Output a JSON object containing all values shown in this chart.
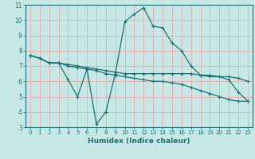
{
  "xlabel": "Humidex (Indice chaleur)",
  "xlim": [
    -0.5,
    23.5
  ],
  "ylim": [
    3,
    11
  ],
  "yticks": [
    3,
    4,
    5,
    6,
    7,
    8,
    9,
    10,
    11
  ],
  "xticks": [
    0,
    1,
    2,
    3,
    4,
    5,
    6,
    7,
    8,
    9,
    10,
    11,
    12,
    13,
    14,
    15,
    16,
    17,
    18,
    19,
    20,
    21,
    22,
    23
  ],
  "bg_color": "#c8e8e8",
  "line_color": "#1a7070",
  "grid_color": "#e8aaaa",
  "line1_x": [
    0,
    1,
    2,
    3,
    4,
    5,
    6,
    7,
    8,
    9,
    10,
    11,
    12,
    13,
    14,
    15,
    16,
    17,
    18,
    19,
    20,
    21,
    22,
    23
  ],
  "line1_y": [
    7.7,
    7.5,
    7.2,
    7.2,
    6.1,
    5.0,
    6.8,
    3.2,
    4.0,
    6.5,
    9.9,
    10.4,
    10.8,
    9.6,
    9.5,
    8.5,
    8.0,
    7.0,
    6.4,
    6.4,
    6.3,
    6.1,
    5.3,
    4.7
  ],
  "line2_x": [
    0,
    1,
    2,
    3,
    4,
    5,
    6,
    7,
    8,
    9,
    10,
    11,
    12,
    13,
    14,
    15,
    16,
    17,
    18,
    19,
    20,
    21,
    22,
    23
  ],
  "line2_y": [
    7.7,
    7.5,
    7.2,
    7.2,
    7.1,
    7.0,
    6.9,
    6.8,
    6.7,
    6.6,
    6.5,
    6.5,
    6.5,
    6.5,
    6.5,
    6.5,
    6.5,
    6.5,
    6.4,
    6.3,
    6.3,
    6.3,
    6.2,
    6.0
  ],
  "line3_x": [
    0,
    1,
    2,
    3,
    4,
    5,
    6,
    7,
    8,
    9,
    10,
    11,
    12,
    13,
    14,
    15,
    16,
    17,
    18,
    19,
    20,
    21,
    22,
    23
  ],
  "line3_y": [
    7.7,
    7.5,
    7.2,
    7.2,
    7.0,
    6.9,
    6.8,
    6.7,
    6.5,
    6.4,
    6.3,
    6.2,
    6.1,
    6.0,
    6.0,
    5.9,
    5.8,
    5.6,
    5.4,
    5.2,
    5.0,
    4.8,
    4.7,
    4.7
  ]
}
